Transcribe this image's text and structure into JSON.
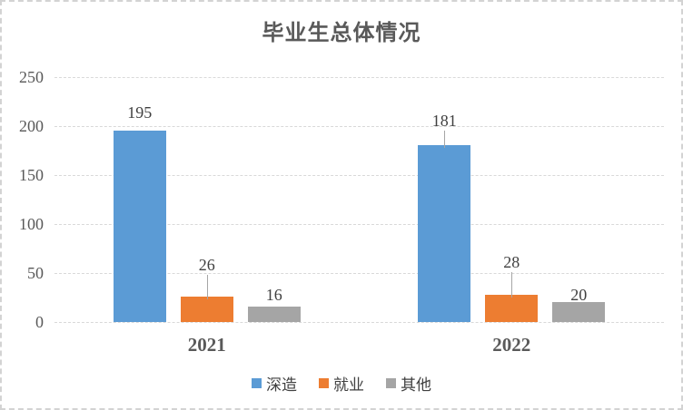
{
  "title": "毕业生总体情况",
  "chart_data": {
    "type": "bar",
    "title": "毕业生总体情况",
    "categories": [
      "2021",
      "2022"
    ],
    "series": [
      {
        "name": "深造",
        "color": "#5B9BD5",
        "values": [
          195,
          181
        ]
      },
      {
        "name": "就业",
        "color": "#ED7D31",
        "values": [
          26,
          28
        ]
      },
      {
        "name": "其他",
        "color": "#A5A5A5",
        "values": [
          16,
          20
        ]
      }
    ],
    "yticks": [
      0,
      50,
      100,
      150,
      200,
      250
    ],
    "ylim": [
      0,
      250
    ],
    "xlabel": "",
    "ylabel": "",
    "grid": "horizontal-dashed",
    "legend_position": "bottom",
    "data_labels": true
  },
  "colors": {
    "background": "#FFFFFF",
    "border": "#D3D3D3",
    "gridline": "#D9D9D9",
    "axis_text": "#595959",
    "data_label_text": "#404040",
    "leader_line": "#A6A6A6"
  }
}
